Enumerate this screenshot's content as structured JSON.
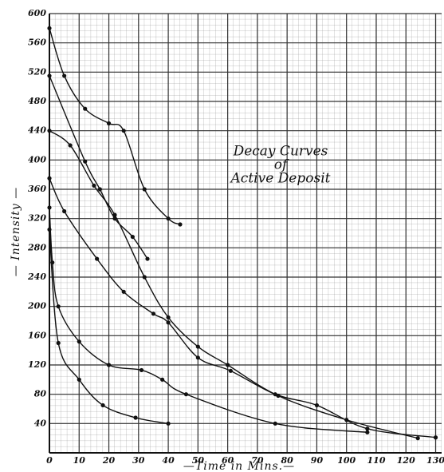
{
  "chart_data": {
    "type": "line",
    "title": [
      "Decay Curves",
      "of",
      "Active Deposit"
    ],
    "x_label": "—Time in Mins.—",
    "y_label": "— Intensity —",
    "xlim": [
      0,
      132
    ],
    "ylim": [
      0,
      600
    ],
    "xticks": [
      0,
      10,
      20,
      30,
      40,
      50,
      60,
      70,
      80,
      90,
      100,
      110,
      120,
      130
    ],
    "yticks": [
      40,
      80,
      120,
      160,
      200,
      240,
      280,
      320,
      360,
      400,
      440,
      480,
      520,
      560,
      600
    ],
    "grid": true,
    "series": [
      {
        "color": "#111",
        "x": [
          0,
          5,
          12,
          20,
          25,
          32,
          40,
          44
        ],
        "values": [
          580,
          515,
          470,
          450,
          440,
          360,
          320,
          312
        ]
      },
      {
        "color": "#111",
        "x": [
          0,
          12,
          17,
          22,
          28,
          33
        ],
        "values": [
          515,
          398,
          360,
          320,
          295,
          265
        ]
      },
      {
        "color": "#111",
        "x": [
          0,
          7,
          15,
          22,
          32,
          40,
          50,
          60,
          77,
          100,
          124
        ],
        "values": [
          440,
          420,
          365,
          325,
          240,
          185,
          145,
          120,
          78,
          45,
          20
        ]
      },
      {
        "color": "#111",
        "x": [
          0,
          5,
          16,
          25,
          35,
          40,
          50,
          61,
          76,
          90,
          107,
          130
        ],
        "values": [
          375,
          330,
          265,
          220,
          190,
          178,
          130,
          112,
          80,
          65,
          33,
          21
        ]
      },
      {
        "color": "#111",
        "x": [
          0,
          1,
          3,
          10,
          20,
          31,
          38,
          46,
          76,
          107
        ],
        "values": [
          335,
          260,
          200,
          152,
          120,
          113,
          100,
          80,
          40,
          28
        ]
      },
      {
        "color": "#111",
        "x": [
          0,
          3,
          10,
          18,
          29,
          40
        ],
        "values": [
          305,
          150,
          100,
          65,
          48,
          40
        ]
      }
    ]
  }
}
